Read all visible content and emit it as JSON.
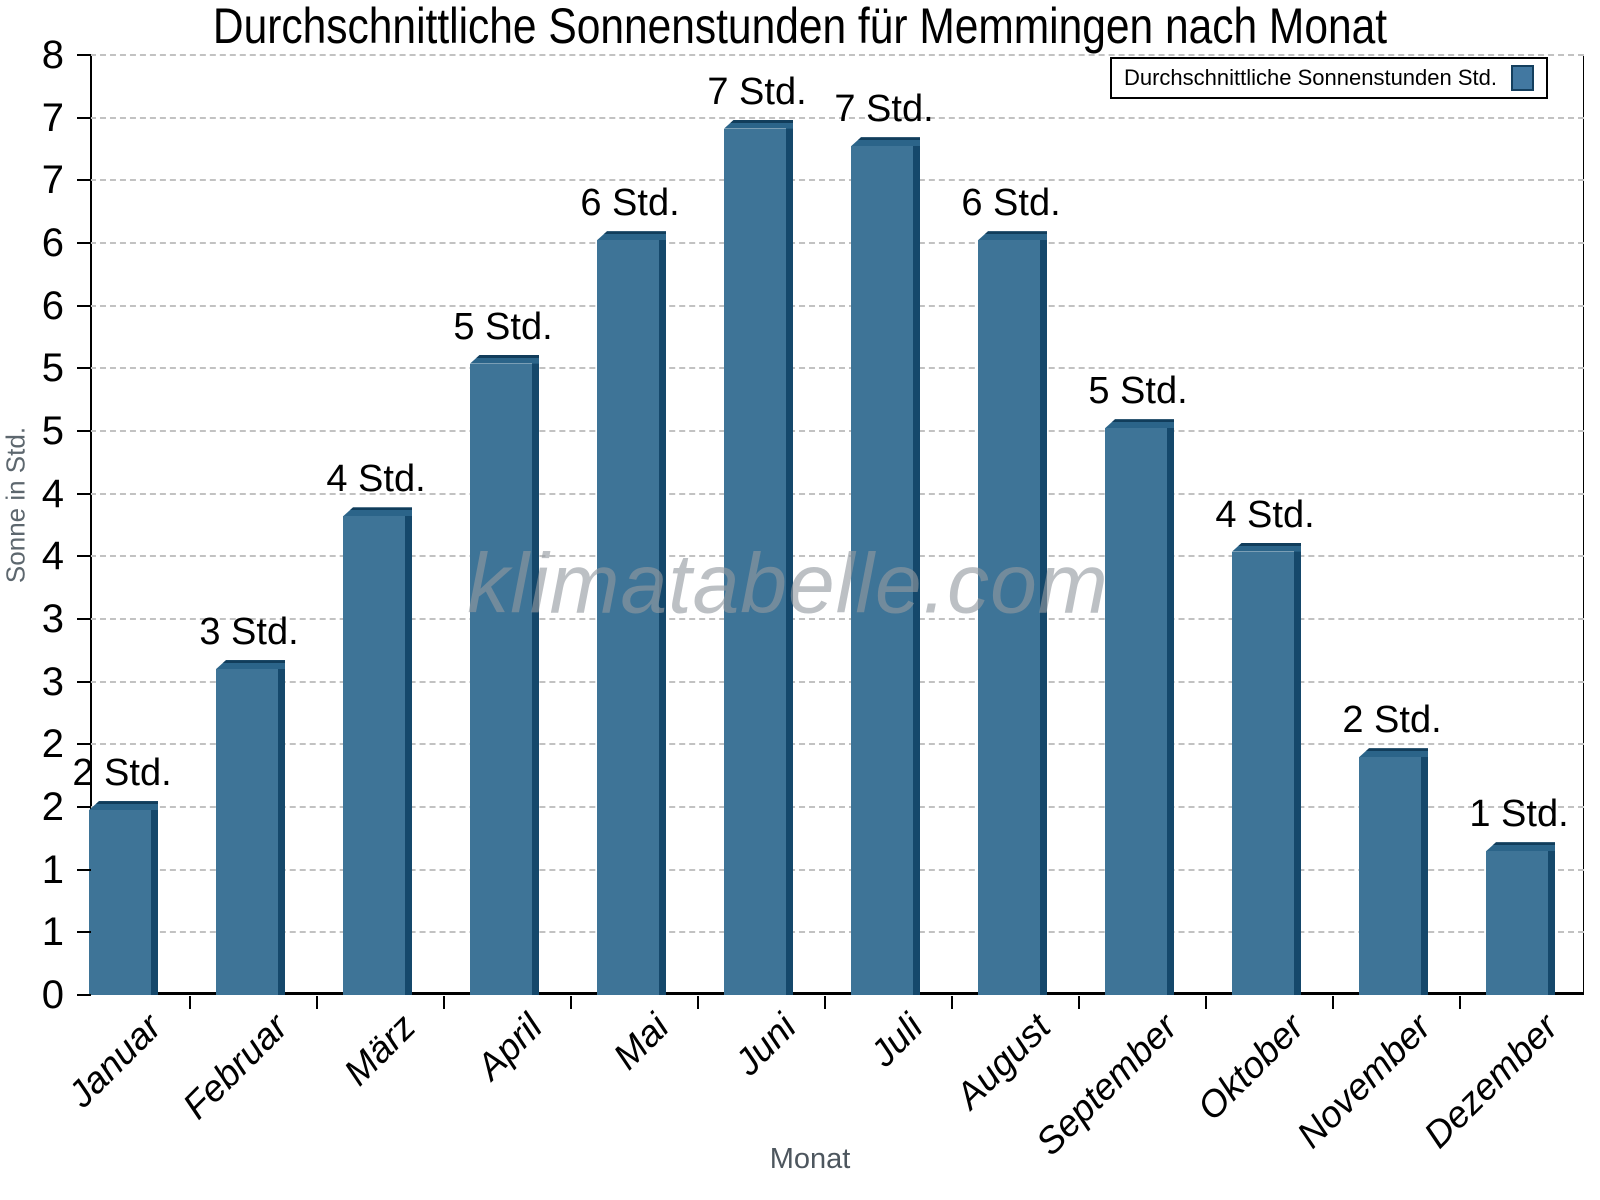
{
  "chart": {
    "title": "Durchschnittliche Sonnenstunden für Memmingen nach Monat",
    "watermark": "klimatabelle.com",
    "x_axis_title": "Monat",
    "y_axis_title": "Sonne in Std.",
    "legend_label": "Durchschnittliche Sonnenstunden Std."
  },
  "chart_data": {
    "type": "bar",
    "title": "Durchschnittliche Sonnenstunden für Memmingen nach Monat",
    "categories": [
      "Januar",
      "Februar",
      "März",
      "April",
      "Mai",
      "Juni",
      "Juli",
      "August",
      "September",
      "Oktober",
      "November",
      "Dezember"
    ],
    "values": [
      1.65,
      2.85,
      4.15,
      5.45,
      6.5,
      7.45,
      7.3,
      6.5,
      4.9,
      3.85,
      2.1,
      1.3
    ],
    "bar_labels": [
      "2 Std.",
      "3 Std.",
      "4 Std.",
      "5 Std.",
      "6 Std.",
      "7 Std.",
      "7 Std.",
      "6 Std.",
      "5 Std.",
      "4 Std.",
      "2 Std.",
      "1 Std."
    ],
    "xlabel": "Monat",
    "ylabel": "Sonne in Std.",
    "ylim": [
      0,
      8
    ],
    "y_tick_labels_top_to_bottom": [
      "8",
      "7",
      "7",
      "6",
      "6",
      "5",
      "5",
      "4",
      "4",
      "3",
      "3",
      "2",
      "2",
      "1",
      "1",
      "0"
    ],
    "grid": "horizontal-dashed",
    "legend": {
      "label": "Durchschnittliche Sonnenstunden Std.",
      "position": "top-right"
    },
    "colors": {
      "bar_face": "#3e7497",
      "bar_side": "#15486b",
      "bar_cap": "#2b6489",
      "bar_outline": "#113d5b",
      "gridline": "#c2c2c2",
      "axis_title_gray": "#5d676e",
      "watermark_gray": "#939aa0"
    }
  }
}
